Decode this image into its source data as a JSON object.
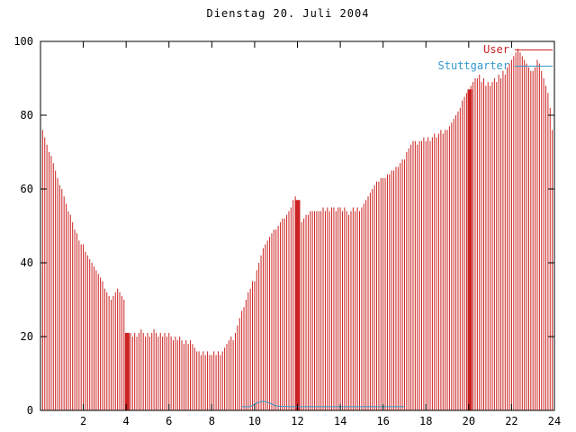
{
  "chart_data": {
    "type": "bar",
    "title": "Dienstag 20. Juli 2004",
    "xlabel": "",
    "ylabel": "",
    "xlim": [
      0,
      24
    ],
    "ylim": [
      0,
      100
    ],
    "x_ticks": [
      2,
      4,
      6,
      8,
      10,
      12,
      14,
      16,
      18,
      20,
      22,
      24
    ],
    "y_ticks": [
      0,
      20,
      40,
      60,
      80,
      100
    ],
    "grid": false,
    "legend_position": "top-right",
    "series": [
      {
        "name": "User",
        "type": "impulses",
        "color": "#cc2222",
        "x_start": 0,
        "x_step": 0.1,
        "values": [
          78,
          76,
          74,
          72,
          70,
          69,
          67,
          65,
          63,
          61,
          60,
          58,
          56,
          54,
          53,
          51,
          49,
          48,
          46,
          45,
          45,
          43,
          42,
          41,
          40,
          39,
          38,
          37,
          36,
          35,
          33,
          32,
          31,
          30,
          31,
          32,
          33,
          32,
          31,
          30,
          21,
          20,
          21,
          20,
          21,
          20,
          21,
          22,
          21,
          20,
          21,
          20,
          21,
          22,
          21,
          20,
          21,
          20,
          21,
          20,
          21,
          20,
          19,
          20,
          19,
          20,
          19,
          18,
          19,
          18,
          19,
          18,
          17,
          16,
          16,
          15,
          16,
          15,
          16,
          15,
          15,
          16,
          15,
          16,
          15,
          16,
          17,
          18,
          19,
          20,
          19,
          21,
          23,
          25,
          27,
          28,
          30,
          32,
          33,
          35,
          35,
          38,
          40,
          42,
          44,
          45,
          46,
          47,
          48,
          49,
          49,
          50,
          51,
          52,
          52,
          53,
          54,
          55,
          57,
          58,
          57,
          50,
          51,
          52,
          53,
          53,
          54,
          54,
          54,
          54,
          54,
          54,
          55,
          54,
          55,
          54,
          55,
          55,
          54,
          55,
          55,
          54,
          55,
          54,
          53,
          54,
          55,
          54,
          55,
          54,
          55,
          56,
          57,
          58,
          59,
          60,
          61,
          62,
          62,
          63,
          63,
          63,
          64,
          64,
          65,
          65,
          66,
          66,
          67,
          68,
          68,
          70,
          71,
          72,
          73,
          73,
          72,
          73,
          73,
          74,
          73,
          74,
          73,
          74,
          75,
          74,
          75,
          76,
          75,
          76,
          76,
          77,
          78,
          79,
          80,
          81,
          82,
          84,
          85,
          86,
          87,
          88,
          89,
          90,
          90,
          91,
          89,
          90,
          88,
          89,
          88,
          89,
          90,
          89,
          91,
          90,
          92,
          91,
          93,
          94,
          95,
          96,
          97,
          98,
          97,
          96,
          95,
          94,
          93,
          92,
          92,
          93,
          95,
          94,
          92,
          90,
          88,
          86,
          82,
          76,
          70
        ]
      },
      {
        "name": "Stuttgarter",
        "type": "line",
        "color": "#3399cc",
        "points": [
          [
            9.4,
            1
          ],
          [
            9.8,
            1
          ],
          [
            10.1,
            2
          ],
          [
            10.4,
            2.5
          ],
          [
            10.7,
            2
          ],
          [
            11.0,
            1.2
          ],
          [
            11.6,
            1
          ],
          [
            12.4,
            1
          ],
          [
            13.5,
            1
          ],
          [
            14.6,
            1
          ],
          [
            15.5,
            1
          ],
          [
            16.2,
            1
          ],
          [
            17.0,
            1
          ]
        ]
      }
    ],
    "dense_bars": [
      {
        "x": 4.05,
        "height": 21
      },
      {
        "x": 12.02,
        "height": 57
      },
      {
        "x": 20.05,
        "height": 87
      }
    ]
  }
}
